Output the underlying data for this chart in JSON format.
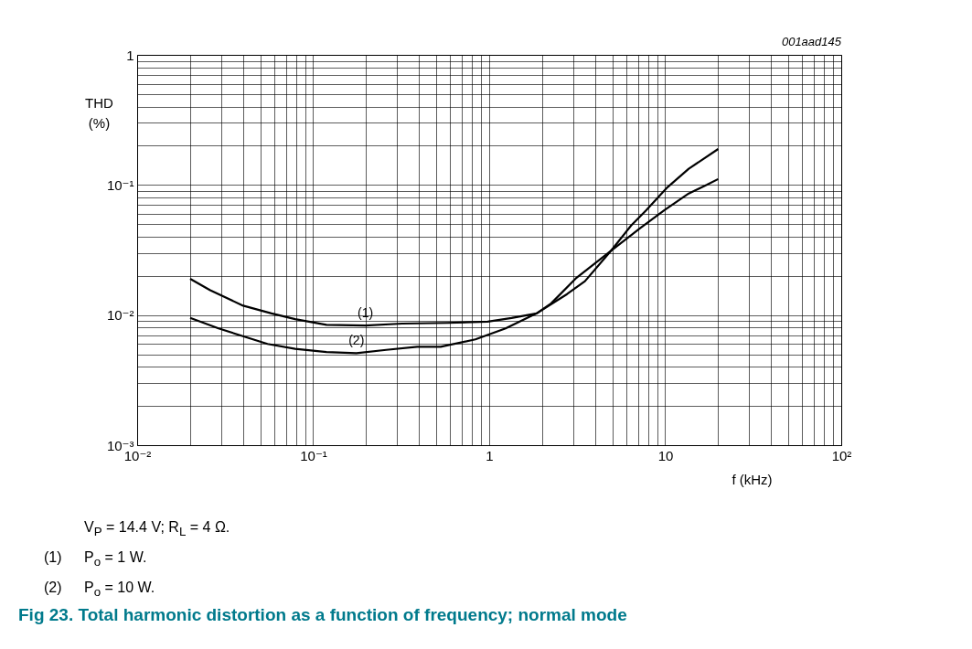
{
  "chart_data": {
    "type": "line",
    "title": "Fig 23. Total harmonic distortion as a function of frequency; normal mode",
    "xlabel": "f (kHz)",
    "ylabel": "THD\n(%)",
    "log": "xy",
    "grid": true,
    "xlim": [
      0.01,
      100
    ],
    "ylim": [
      0.001,
      1
    ],
    "xticks": [
      {
        "value": 0.01,
        "label": "10⁻²"
      },
      {
        "value": 0.02,
        "label": null
      },
      {
        "value": 0.03,
        "label": null
      },
      {
        "value": 0.04,
        "label": null
      },
      {
        "value": 0.05,
        "label": null
      },
      {
        "value": 0.06,
        "label": null
      },
      {
        "value": 0.07,
        "label": null
      },
      {
        "value": 0.08,
        "label": null
      },
      {
        "value": 0.09,
        "label": null
      },
      {
        "value": 0.1,
        "label": "10⁻¹"
      },
      {
        "value": 0.2,
        "label": null
      },
      {
        "value": 0.3,
        "label": null
      },
      {
        "value": 0.4,
        "label": null
      },
      {
        "value": 0.5,
        "label": null
      },
      {
        "value": 0.6,
        "label": null
      },
      {
        "value": 0.7,
        "label": null
      },
      {
        "value": 0.8,
        "label": null
      },
      {
        "value": 0.9,
        "label": null
      },
      1,
      {
        "value": 2,
        "label": null
      },
      {
        "value": 3,
        "label": null
      },
      {
        "value": 4,
        "label": null
      },
      {
        "value": 5,
        "label": null
      },
      {
        "value": 6,
        "label": null
      },
      {
        "value": 7,
        "label": null
      },
      {
        "value": 8,
        "label": null
      },
      {
        "value": 9,
        "label": null
      },
      10,
      {
        "value": 20,
        "label": null
      },
      {
        "value": 30,
        "label": null
      },
      {
        "value": 40,
        "label": null
      },
      {
        "value": 50,
        "label": null
      },
      {
        "value": 60,
        "label": null
      },
      {
        "value": 70,
        "label": null
      },
      {
        "value": 80,
        "label": null
      },
      {
        "value": 90,
        "label": null
      },
      {
        "value": 100,
        "label": "10²"
      }
    ],
    "yticks": [
      {
        "value": 0.001,
        "label": "10⁻³"
      },
      {
        "value": 0.002,
        "label": null
      },
      {
        "value": 0.003,
        "label": null
      },
      {
        "value": 0.004,
        "label": null
      },
      {
        "value": 0.005,
        "label": null
      },
      {
        "value": 0.006,
        "label": null
      },
      {
        "value": 0.007,
        "label": null
      },
      {
        "value": 0.008,
        "label": null
      },
      {
        "value": 0.009,
        "label": null
      },
      {
        "value": 0.01,
        "label": "10⁻²"
      },
      {
        "value": 0.02,
        "label": null
      },
      {
        "value": 0.03,
        "label": null
      },
      {
        "value": 0.04,
        "label": null
      },
      {
        "value": 0.05,
        "label": null
      },
      {
        "value": 0.06,
        "label": null
      },
      {
        "value": 0.07,
        "label": null
      },
      {
        "value": 0.08,
        "label": null
      },
      {
        "value": 0.09,
        "label": null
      },
      {
        "value": 0.1,
        "label": "10⁻¹"
      },
      {
        "value": 0.2,
        "label": null
      },
      {
        "value": 0.3,
        "label": null
      },
      {
        "value": 0.4,
        "label": null
      },
      {
        "value": 0.5,
        "label": null
      },
      {
        "value": 0.6,
        "label": null
      },
      {
        "value": 0.7,
        "label": null
      },
      {
        "value": 0.8,
        "label": null
      },
      {
        "value": 0.9,
        "label": null
      },
      1
    ],
    "line_style": "solid",
    "marker": "none",
    "series": [
      {
        "name": "(1)",
        "color": "#000000",
        "x": [
          0.02,
          0.026,
          0.04,
          0.058,
          0.079,
          0.119,
          0.198,
          0.32,
          0.58,
          0.98,
          1.34,
          1.86,
          2.77,
          3.5,
          4.9,
          6.4,
          7.8,
          10.3,
          13.6,
          20
        ],
        "values": [
          0.019,
          0.0155,
          0.0118,
          0.0103,
          0.0093,
          0.0084,
          0.0083,
          0.0086,
          0.0087,
          0.0089,
          0.0095,
          0.0103,
          0.0145,
          0.0182,
          0.031,
          0.0487,
          0.064,
          0.096,
          0.133,
          0.189
        ]
      },
      {
        "name": "(2)",
        "color": "#000000",
        "x": [
          0.02,
          0.029,
          0.041,
          0.055,
          0.079,
          0.119,
          0.176,
          0.26,
          0.39,
          0.53,
          0.835,
          1.24,
          1.86,
          2.25,
          3.1,
          4.9,
          7.2,
          9.9,
          13.6,
          17.2,
          20
        ],
        "values": [
          0.0095,
          0.0079,
          0.0068,
          0.006,
          0.0055,
          0.0052,
          0.0051,
          0.0054,
          0.0057,
          0.0057,
          0.0065,
          0.0079,
          0.0103,
          0.0123,
          0.0191,
          0.031,
          0.0465,
          0.064,
          0.086,
          0.1,
          0.111
        ]
      }
    ],
    "annotations": [
      "001aad145",
      "V$_{P}$ = 14.4 V; R$_{L}$ = 4 Ω.",
      "(1)  P$_{o}$ = 1 W.",
      "(2)  P$_{o}$ = 10 W."
    ]
  }
}
